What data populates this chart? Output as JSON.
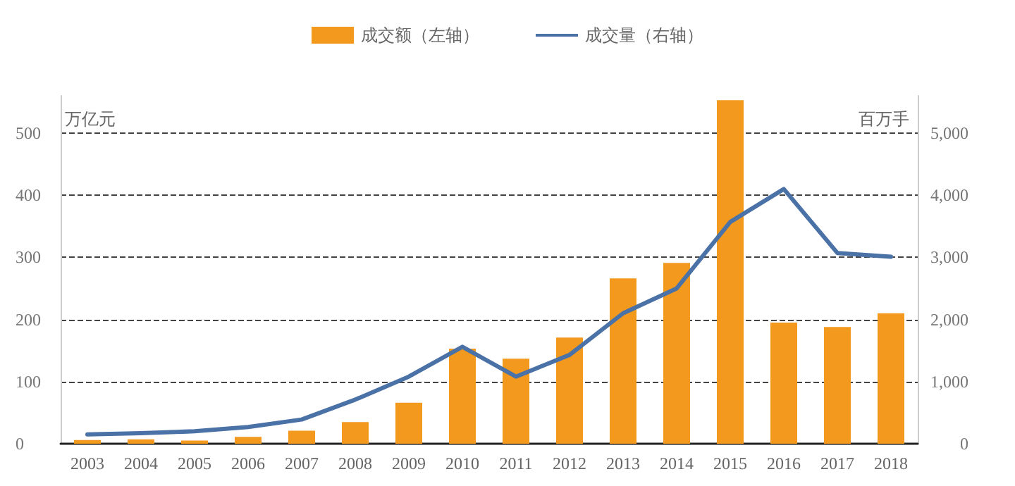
{
  "chart_data": {
    "type": "bar",
    "categories": [
      "2003",
      "2004",
      "2005",
      "2006",
      "2007",
      "2008",
      "2009",
      "2010",
      "2011",
      "2012",
      "2013",
      "2014",
      "2015",
      "2016",
      "2017",
      "2018"
    ],
    "series": [
      {
        "name": "成交额（左轴）",
        "color": "#f39a1e",
        "values": [
          6,
          7,
          5,
          11,
          21,
          35,
          66,
          153,
          137,
          171,
          266,
          291,
          553,
          195,
          188,
          210
        ]
      },
      {
        "name": "成交量（右轴）",
        "type": "line",
        "axis": "y2",
        "color": "#4a72a6",
        "values": [
          150,
          170,
          200,
          270,
          390,
          710,
          1080,
          1560,
          1080,
          1430,
          2100,
          2500,
          3570,
          4100,
          3070,
          3010
        ]
      }
    ],
    "ylabel": "万亿元",
    "y2label": "百万手",
    "ylim": [
      0,
      560
    ],
    "yticks": [
      0,
      100,
      200,
      300,
      400,
      500
    ],
    "y2lim": [
      0,
      5600
    ],
    "y2ticks": [
      0,
      {
        "value": 1000,
        "label": "1,000"
      },
      {
        "value": 2000,
        "label": "2,000"
      },
      {
        "value": 3000,
        "label": "3,000"
      },
      {
        "value": 4000,
        "label": "4,000"
      },
      {
        "value": 5000,
        "label": "5,000"
      }
    ],
    "grid": "y",
    "legend": "top",
    "marker": "none",
    "line_style": "solid"
  }
}
